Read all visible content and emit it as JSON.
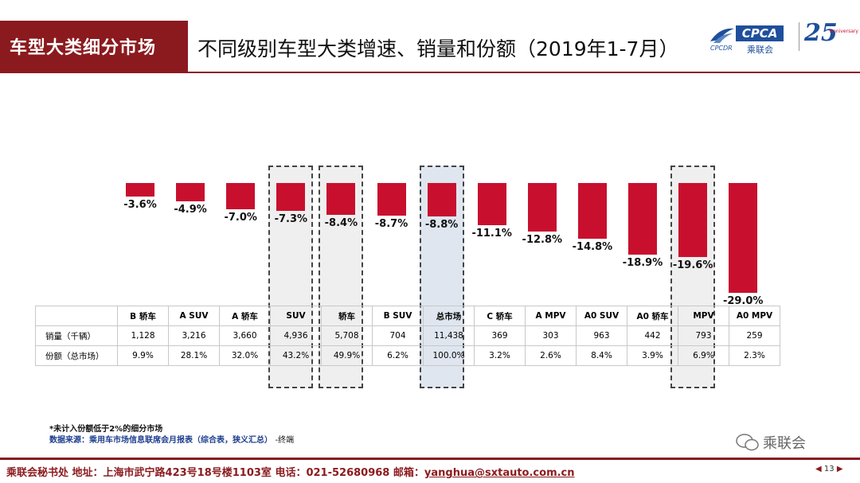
{
  "header": {
    "category": "车型大类细分市场",
    "title": "不同级别车型大类增速、销量和份额（2019年1-7月）"
  },
  "logos": {
    "cpca_box": "CPCA",
    "cpca_cn": "乘联会",
    "cpca_small": "CPCDR",
    "anniv": "25",
    "anniv_sub": "Anniversary"
  },
  "chart_data": {
    "type": "bar",
    "categories": [
      "B 轿车",
      "A SUV",
      "A 轿车",
      "SUV",
      "轿车",
      "B SUV",
      "总市场",
      "C 轿车",
      "A MPV",
      "A0 SUV",
      "A0 轿车",
      "MPV",
      "A0 MPV"
    ],
    "values": [
      -3.6,
      -4.9,
      -7.0,
      -7.3,
      -8.4,
      -8.7,
      -8.8,
      -11.1,
      -12.8,
      -14.8,
      -18.9,
      -19.6,
      -29.0
    ],
    "value_labels": [
      "-3.6%",
      "-4.9%",
      "-7.0%",
      "-7.3%",
      "-8.4%",
      "-8.7%",
      "-8.8%",
      "-11.1%",
      "-12.8%",
      "-14.8%",
      "-18.9%",
      "-19.6%",
      "-29.0%"
    ],
    "ylim": [
      -30,
      0
    ],
    "highlighted": [
      "SUV",
      "轿车",
      "总市场",
      "MPV"
    ],
    "colors": {
      "bar": "#c8102e",
      "highlight_fill": "#efefef",
      "market_fill": "#dfe6ef"
    }
  },
  "table": {
    "rows": [
      {
        "label": "销量（千辆）",
        "values": [
          "1,128",
          "3,216",
          "3,660",
          "4,936",
          "5,708",
          "704",
          "11,438",
          "369",
          "303",
          "963",
          "442",
          "793",
          "259"
        ]
      },
      {
        "label": "份额（总市场）",
        "values": [
          "9.9%",
          "28.1%",
          "32.0%",
          "43.2%",
          "49.9%",
          "6.2%",
          "100.0%",
          "3.2%",
          "2.6%",
          "8.4%",
          "3.9%",
          "6.9%",
          "2.3%"
        ]
      }
    ]
  },
  "notes": {
    "note1": "*未计入份额低于2%的细分市场",
    "note2": "数据来源：乘用车市场信息联席会月报表（综合表，狭义汇总）",
    "note2_end": "-终端"
  },
  "watermark": "乘联会",
  "footer": {
    "text": "乘联会秘书处  地址：上海市武宁路423号18号楼1103室  电话：021-52680968  邮箱：",
    "email": "yanghua@sxtauto.com.cn",
    "page": "13",
    "prev_icon": "triangle-left",
    "next_icon": "triangle-right"
  }
}
